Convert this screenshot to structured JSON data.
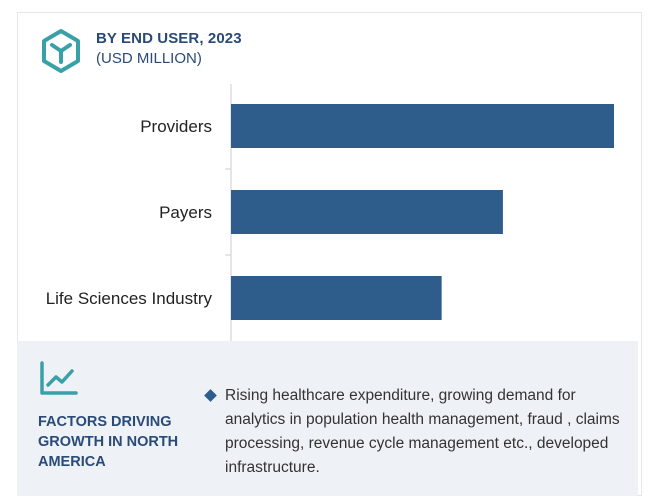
{
  "header": {
    "title": "BY END USER, 2023",
    "subtitle": "(USD MILLION)",
    "logo_icon": "cube-icon"
  },
  "colors": {
    "bar": "#2e5d8c",
    "accent": "#3aa0a8",
    "heading": "#2a4a78",
    "panel_bg": "#eef1f5"
  },
  "chart_data": {
    "type": "bar",
    "orientation": "horizontal",
    "categories": [
      "Providers",
      "Payers",
      "Life Sciences Industry"
    ],
    "values": [
      100,
      71,
      55
    ],
    "value_axis_printed": false
  },
  "factors": {
    "icon": "trend-line-icon",
    "title": "FACTORS DRIVING GROWTH IN NORTH AMERICA",
    "text": "Rising healthcare expenditure, growing demand for analytics in population health management, fraud , claims processing, revenue cycle management etc., developed infrastructure."
  }
}
